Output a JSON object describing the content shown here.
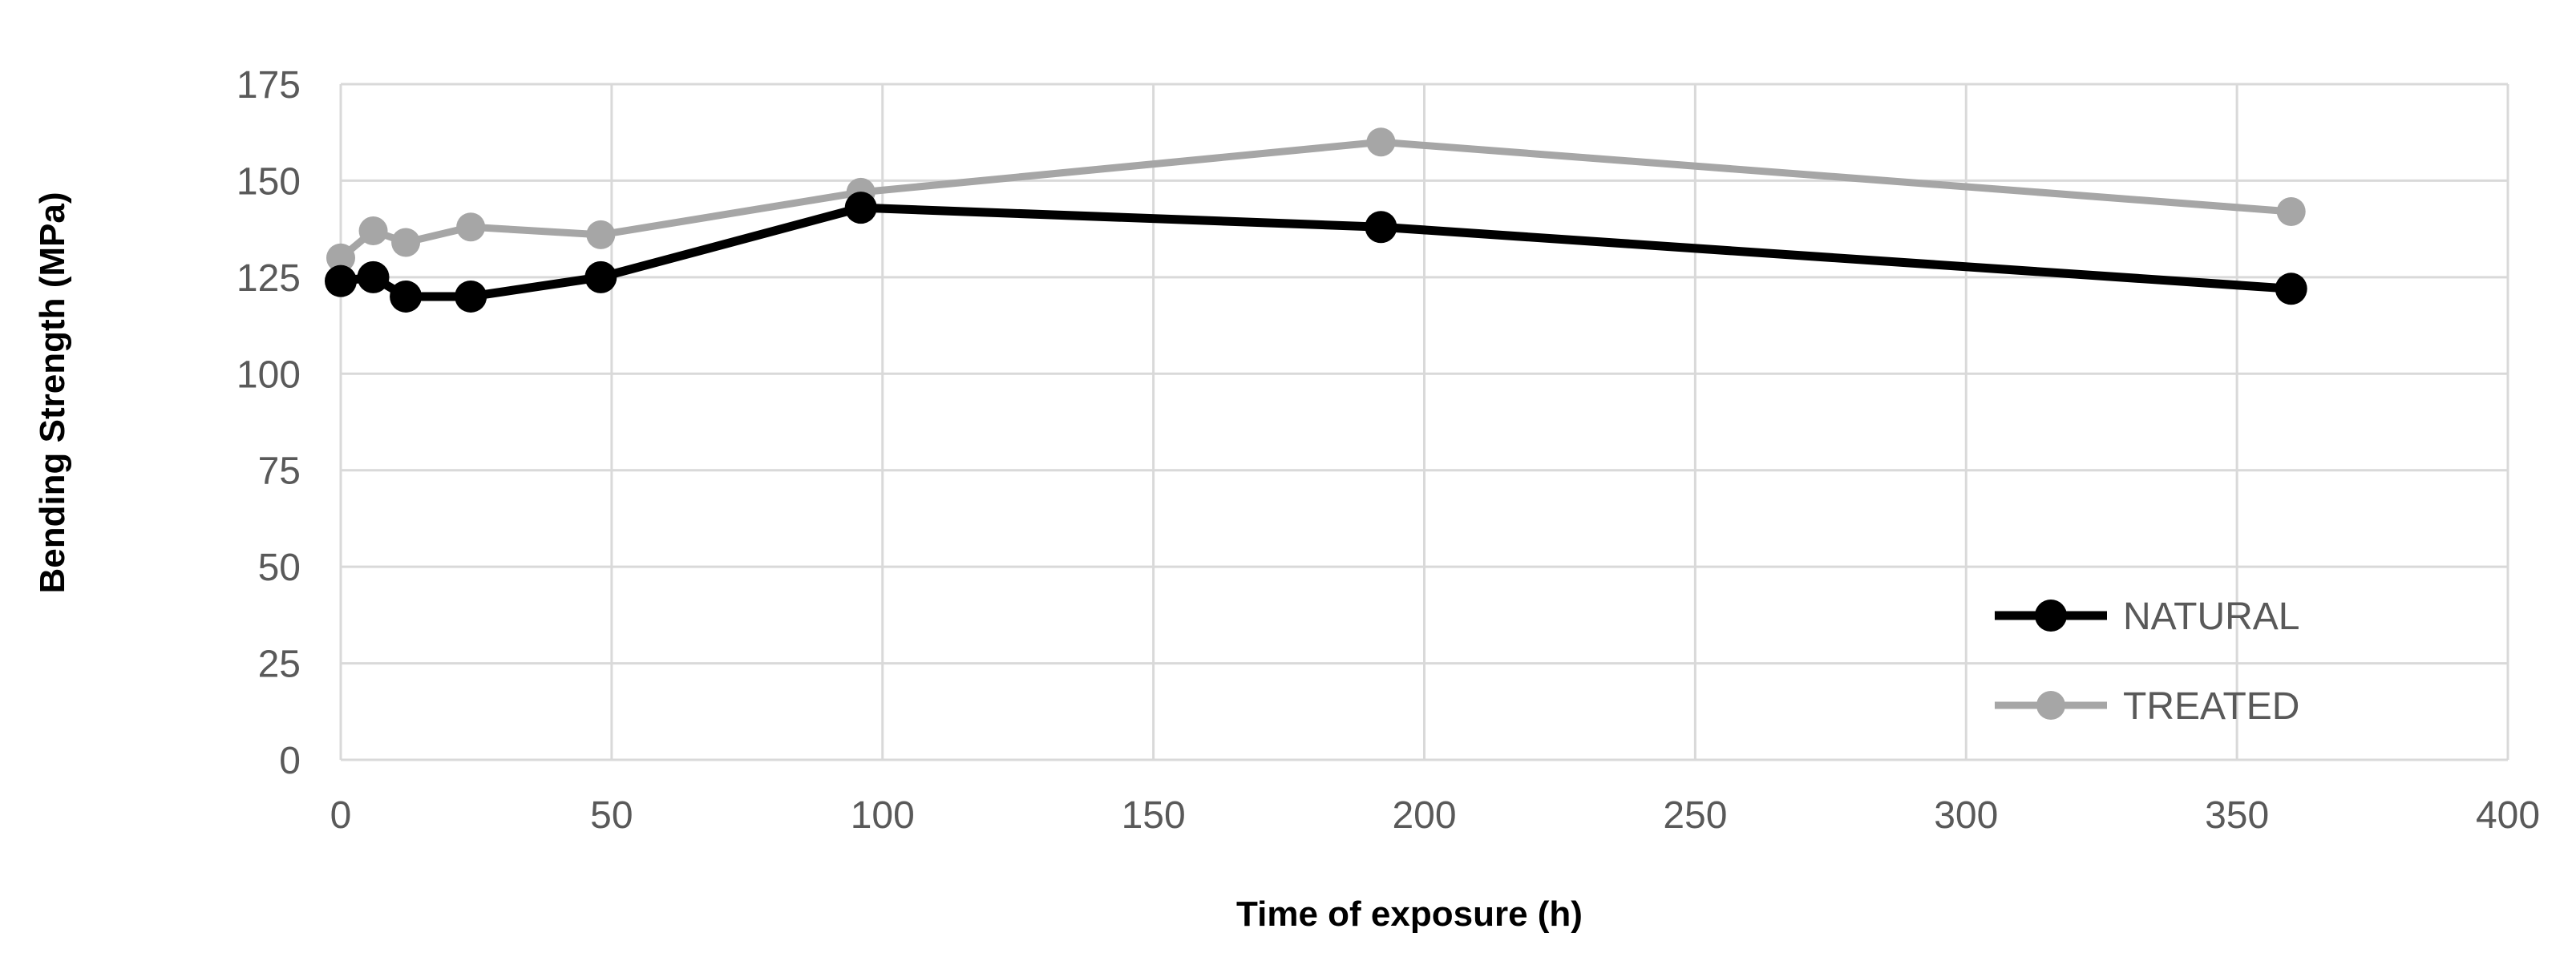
{
  "chart_data": {
    "type": "line",
    "title": "",
    "xlabel": "Time of exposure (h)",
    "ylabel": "Bending Strength (MPa)",
    "xlim": [
      0,
      400
    ],
    "ylim": [
      0,
      175
    ],
    "x_ticks": [
      0,
      50,
      100,
      150,
      200,
      250,
      300,
      350,
      400
    ],
    "y_ticks": [
      0,
      25,
      50,
      75,
      100,
      125,
      150,
      175
    ],
    "x_tick_labels": [
      "0",
      "50",
      "100",
      "150",
      "200",
      "250",
      "300",
      "350",
      "400"
    ],
    "y_tick_labels": [
      "0",
      "25",
      "50",
      "75",
      "100",
      "125",
      "150",
      "175"
    ],
    "grid": true,
    "legend_position": "bottom-right",
    "series": [
      {
        "name": "NATURAL",
        "color": "#000000",
        "x": [
          0,
          6,
          12,
          24,
          48,
          96,
          192,
          360
        ],
        "y": [
          124,
          125,
          120,
          120,
          125,
          143,
          138,
          122
        ]
      },
      {
        "name": "TREATED",
        "color": "#a6a6a6",
        "x": [
          0,
          6,
          12,
          24,
          48,
          96,
          192,
          360
        ],
        "y": [
          130,
          137,
          134,
          138,
          136,
          147,
          160,
          142
        ]
      }
    ]
  }
}
